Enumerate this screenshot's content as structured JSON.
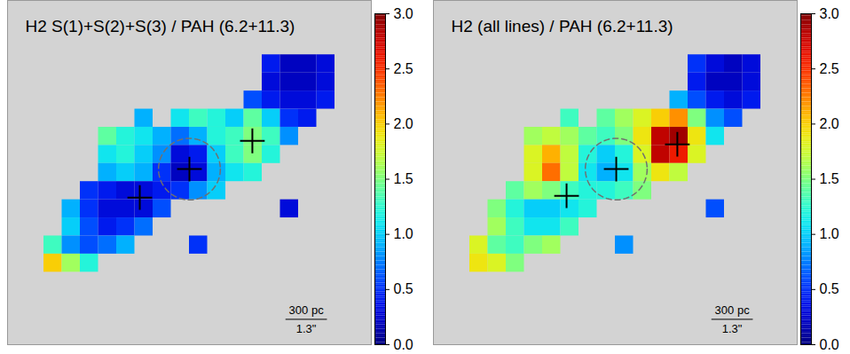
{
  "chart_data": [
    {
      "type": "heatmap",
      "title": "H2 S(1)+S(2)+S(3) / PAH (6.2+11.3)",
      "xlim": [
        0,
        20
      ],
      "ylim": [
        0,
        19
      ],
      "tick_labels": false,
      "cells": [
        [
          null,
          null,
          null,
          null,
          null,
          null,
          null,
          null,
          null,
          null,
          null,
          null,
          null,
          null,
          null,
          null,
          null,
          null,
          null,
          null
        ],
        [
          null,
          null,
          null,
          null,
          null,
          null,
          null,
          null,
          null,
          null,
          null,
          null,
          null,
          null,
          null,
          null,
          null,
          null,
          null,
          null
        ],
        [
          null,
          null,
          null,
          null,
          null,
          null,
          null,
          null,
          null,
          null,
          null,
          null,
          null,
          null,
          null,
          null,
          null,
          null,
          null,
          null
        ],
        [
          null,
          null,
          null,
          null,
          null,
          null,
          null,
          null,
          null,
          null,
          null,
          null,
          null,
          null,
          0.4,
          0.2,
          0.2,
          0.3,
          null,
          null
        ],
        [
          null,
          null,
          null,
          null,
          null,
          null,
          null,
          null,
          null,
          null,
          null,
          null,
          null,
          null,
          0.3,
          0.2,
          0.2,
          0.3,
          null,
          null
        ],
        [
          null,
          null,
          null,
          null,
          null,
          null,
          null,
          null,
          null,
          null,
          null,
          null,
          null,
          0.6,
          0.4,
          0.3,
          0.3,
          0.4,
          null,
          null
        ],
        [
          null,
          null,
          null,
          null,
          null,
          null,
          null,
          0.9,
          null,
          1.1,
          1.3,
          1.2,
          1.0,
          1.4,
          1.0,
          0.5,
          0.4,
          null,
          null,
          null
        ],
        [
          null,
          null,
          null,
          null,
          null,
          1.4,
          1.2,
          1.1,
          0.9,
          0.7,
          0.9,
          1.2,
          1.3,
          1.5,
          1.3,
          0.8,
          null,
          null,
          null,
          null
        ],
        [
          null,
          null,
          null,
          null,
          null,
          1.1,
          1.2,
          1.0,
          0.8,
          0.3,
          0.4,
          1.0,
          1.3,
          1.5,
          1.2,
          null,
          null,
          null,
          null,
          null
        ],
        [
          null,
          null,
          null,
          null,
          null,
          0.9,
          1.0,
          0.9,
          0.5,
          0.2,
          0.3,
          0.9,
          1.1,
          1.2,
          null,
          null,
          null,
          null,
          null,
          null
        ],
        [
          null,
          null,
          null,
          null,
          0.5,
          0.4,
          0.3,
          0.3,
          0.4,
          0.5,
          0.8,
          1.0,
          null,
          null,
          null,
          null,
          null,
          null,
          null,
          null
        ],
        [
          null,
          null,
          null,
          0.9,
          0.5,
          0.3,
          0.3,
          0.3,
          0.6,
          null,
          null,
          null,
          null,
          null,
          null,
          0.3,
          null,
          null,
          null,
          null
        ],
        [
          null,
          null,
          null,
          1.0,
          0.6,
          0.4,
          0.5,
          0.7,
          null,
          null,
          null,
          null,
          null,
          null,
          null,
          null,
          null,
          null,
          null,
          null
        ],
        [
          null,
          null,
          1.3,
          0.8,
          0.6,
          0.7,
          0.9,
          null,
          null,
          null,
          0.5,
          null,
          null,
          null,
          null,
          null,
          null,
          null,
          null,
          null
        ],
        [
          null,
          null,
          2.0,
          1.6,
          1.2,
          null,
          null,
          null,
          null,
          null,
          null,
          null,
          null,
          null,
          null,
          null,
          null,
          null,
          null,
          null
        ],
        [
          null,
          null,
          null,
          null,
          null,
          null,
          null,
          null,
          null,
          null,
          null,
          null,
          null,
          null,
          null,
          null,
          null,
          null,
          null,
          null
        ],
        [
          null,
          null,
          null,
          null,
          null,
          null,
          null,
          null,
          null,
          null,
          null,
          null,
          null,
          null,
          null,
          null,
          null,
          null,
          null,
          null
        ],
        [
          null,
          null,
          null,
          null,
          null,
          null,
          null,
          null,
          null,
          null,
          null,
          null,
          null,
          null,
          null,
          null,
          null,
          null,
          null,
          null
        ],
        [
          null,
          null,
          null,
          null,
          null,
          null,
          null,
          null,
          null,
          null,
          null,
          null,
          null,
          null,
          null,
          null,
          null,
          null,
          null,
          null
        ]
      ],
      "color_range": [
        0,
        3
      ],
      "color_ticks": [
        {
          "value": 0,
          "label": "0.0"
        },
        {
          "value": 0.5,
          "label": "0.5"
        },
        {
          "value": 1,
          "label": "1.0"
        },
        {
          "value": 1.5,
          "label": "1.5"
        },
        {
          "value": 2,
          "label": "2.0"
        },
        {
          "value": 2.5,
          "label": "2.5"
        },
        {
          "value": 3,
          "label": "3.0"
        }
      ],
      "markers": {
        "x": [
          7.27,
          10.0,
          13.46
        ],
        "y": [
          10.88,
          9.31,
          7.75
        ]
      },
      "marker": "plus",
      "circle": {
        "x": 10.0,
        "y": 9.31,
        "r": 1.7
      },
      "line_style": "dashed",
      "scale_bar": {
        "x": 15.3,
        "y": 17.6,
        "length": 2.24,
        "labels": [
          "300 pc",
          "1.3\""
        ]
      }
    },
    {
      "type": "heatmap",
      "title": "H2 (all lines) / PAH (6.2+11.3)",
      "xlim": [
        0,
        20
      ],
      "ylim": [
        0,
        19
      ],
      "tick_labels": false,
      "cells": [
        [
          null,
          null,
          null,
          null,
          null,
          null,
          null,
          null,
          null,
          null,
          null,
          null,
          null,
          null,
          null,
          null,
          null,
          null,
          null,
          null
        ],
        [
          null,
          null,
          null,
          null,
          null,
          null,
          null,
          null,
          null,
          null,
          null,
          null,
          null,
          null,
          null,
          null,
          null,
          null,
          null,
          null
        ],
        [
          null,
          null,
          null,
          null,
          null,
          null,
          null,
          null,
          null,
          null,
          null,
          null,
          null,
          null,
          null,
          null,
          null,
          null,
          null,
          null
        ],
        [
          null,
          null,
          null,
          null,
          null,
          null,
          null,
          null,
          null,
          null,
          null,
          null,
          null,
          null,
          0.5,
          0.3,
          0.2,
          0.3,
          null,
          null
        ],
        [
          null,
          null,
          null,
          null,
          null,
          null,
          null,
          null,
          null,
          null,
          null,
          null,
          null,
          null,
          0.4,
          0.2,
          0.2,
          0.3,
          null,
          null
        ],
        [
          null,
          null,
          null,
          null,
          null,
          null,
          null,
          null,
          null,
          null,
          null,
          null,
          null,
          0.9,
          0.6,
          0.4,
          0.3,
          0.4,
          null,
          null
        ],
        [
          null,
          null,
          null,
          null,
          null,
          null,
          null,
          1.3,
          null,
          1.4,
          1.6,
          1.8,
          2.0,
          2.2,
          1.5,
          0.8,
          0.6,
          null,
          null,
          null
        ],
        [
          null,
          null,
          null,
          null,
          null,
          1.6,
          1.7,
          1.6,
          1.4,
          1.3,
          1.5,
          1.9,
          2.8,
          2.9,
          1.9,
          1.1,
          null,
          null,
          null,
          null
        ],
        [
          null,
          null,
          null,
          null,
          null,
          1.8,
          2.1,
          1.7,
          1.2,
          1.0,
          1.2,
          1.8,
          2.8,
          2.6,
          1.8,
          null,
          null,
          null,
          null,
          null
        ],
        [
          null,
          null,
          null,
          null,
          null,
          1.8,
          2.3,
          1.7,
          1.1,
          0.9,
          1.1,
          1.6,
          1.9,
          1.7,
          null,
          null,
          null,
          null,
          null,
          null
        ],
        [
          null,
          null,
          null,
          null,
          1.4,
          1.6,
          1.5,
          1.3,
          1.2,
          1.2,
          1.3,
          1.5,
          null,
          null,
          null,
          null,
          null,
          null,
          null,
          null
        ],
        [
          null,
          null,
          null,
          1.5,
          1.2,
          1.0,
          1.0,
          1.1,
          1.2,
          null,
          null,
          null,
          null,
          null,
          null,
          0.6,
          null,
          null,
          null,
          null
        ],
        [
          null,
          null,
          null,
          1.6,
          1.3,
          1.1,
          1.1,
          1.3,
          null,
          null,
          null,
          null,
          null,
          null,
          null,
          null,
          null,
          null,
          null,
          null
        ],
        [
          null,
          null,
          1.8,
          1.4,
          1.3,
          1.5,
          1.6,
          null,
          null,
          null,
          0.8,
          null,
          null,
          null,
          null,
          null,
          null,
          null,
          null,
          null
        ],
        [
          null,
          null,
          1.9,
          1.8,
          1.5,
          null,
          null,
          null,
          null,
          null,
          null,
          null,
          null,
          null,
          null,
          null,
          null,
          null,
          null,
          null
        ],
        [
          null,
          null,
          null,
          null,
          null,
          null,
          null,
          null,
          null,
          null,
          null,
          null,
          null,
          null,
          null,
          null,
          null,
          null,
          null,
          null
        ],
        [
          null,
          null,
          null,
          null,
          null,
          null,
          null,
          null,
          null,
          null,
          null,
          null,
          null,
          null,
          null,
          null,
          null,
          null,
          null,
          null
        ],
        [
          null,
          null,
          null,
          null,
          null,
          null,
          null,
          null,
          null,
          null,
          null,
          null,
          null,
          null,
          null,
          null,
          null,
          null,
          null,
          null
        ],
        [
          null,
          null,
          null,
          null,
          null,
          null,
          null,
          null,
          null,
          null,
          null,
          null,
          null,
          null,
          null,
          null,
          null,
          null,
          null,
          null
        ]
      ],
      "color_range": [
        0,
        3
      ],
      "color_ticks": [
        {
          "value": 0,
          "label": "0.0"
        },
        {
          "value": 0.5,
          "label": "0.5"
        },
        {
          "value": 1,
          "label": "1.0"
        },
        {
          "value": 1.5,
          "label": "1.5"
        },
        {
          "value": 2,
          "label": "2.0"
        },
        {
          "value": 2.5,
          "label": "2.5"
        },
        {
          "value": 3,
          "label": "3.0"
        }
      ],
      "markers": {
        "x": [
          7.32,
          10.05,
          13.41
        ],
        "y": [
          10.78,
          9.31,
          7.94
        ]
      },
      "marker": "plus",
      "circle": {
        "x": 10.05,
        "y": 9.31,
        "r": 1.7
      },
      "line_style": "dashed",
      "scale_bar": {
        "x": 15.3,
        "y": 17.6,
        "length": 2.24,
        "labels": [
          "300 pc",
          "1.3\""
        ]
      }
    }
  ]
}
